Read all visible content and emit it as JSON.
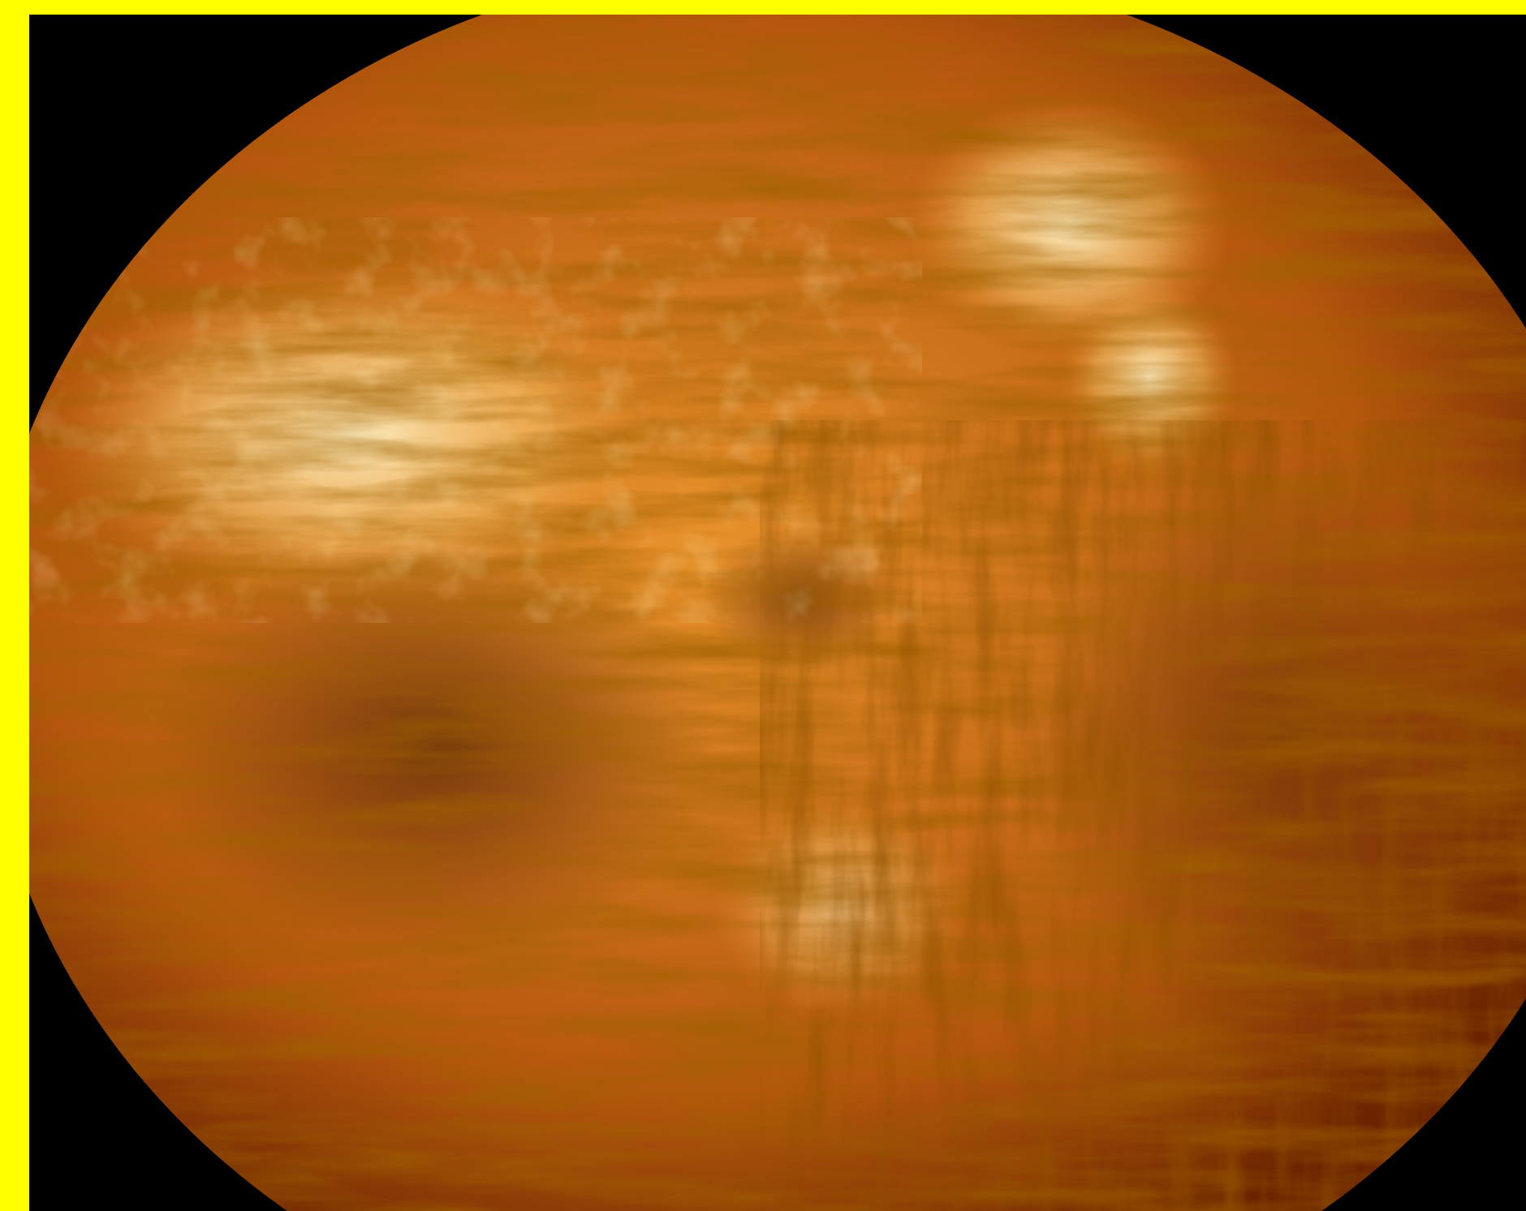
{
  "image": {
    "subject": "",
    "frame_color": "#ffff00",
    "background_color": "#000000",
    "palette": {
      "dark": "#3a1200",
      "deep": "#6a2400",
      "mid": "#b5560e",
      "bright": "#e8922c",
      "highlight": "#ffd27a",
      "hot": "#fff3c9"
    }
  }
}
